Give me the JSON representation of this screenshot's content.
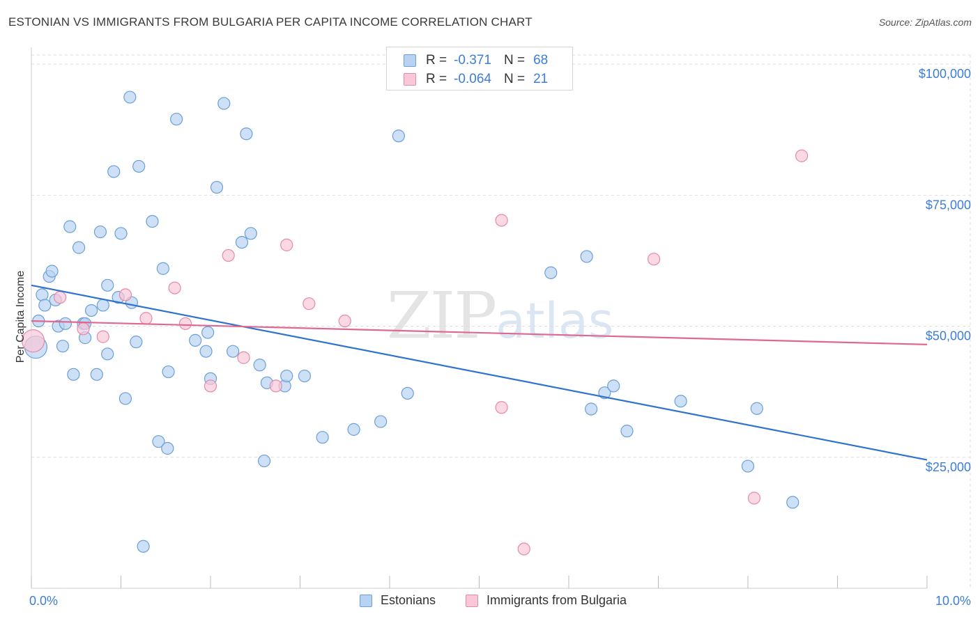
{
  "page": {
    "title": "ESTONIAN VS IMMIGRANTS FROM BULGARIA PER CAPITA INCOME CORRELATION CHART",
    "source": "Source: ZipAtlas.com",
    "watermark_zip": "ZIP",
    "watermark_atlas": "atlas"
  },
  "legend": {
    "rows": [
      {
        "r_label": "R =",
        "r_value": "-0.371",
        "n_label": "N =",
        "n_value": "68"
      },
      {
        "r_label": "R =",
        "r_value": "-0.064",
        "n_label": "N =",
        "n_value": "21"
      }
    ],
    "series_names": [
      "Estonians",
      "Immigrants from Bulgaria"
    ]
  },
  "colors": {
    "blue_fill": "#b8d3f2",
    "blue_stroke": "#6a9fd8",
    "blue_line": "#2f72d0",
    "pink_fill": "#f8c8d8",
    "pink_stroke": "#e48aa8",
    "pink_line": "#e06890",
    "accent_text": "#3b7dd8",
    "grid": "#dddddd"
  },
  "chart_data": {
    "type": "scatter",
    "title": "ESTONIAN VS IMMIGRANTS FROM BULGARIA PER CAPITA INCOME CORRELATION CHART",
    "xlabel": "",
    "ylabel": "Per Capita Income",
    "xlim": [
      0.0,
      10.0
    ],
    "ylim": [
      0,
      104000
    ],
    "x_tick_labels": [
      {
        "value": 0.0,
        "label": "0.0%"
      },
      {
        "value": 10.0,
        "label": "10.0%"
      }
    ],
    "y_ticks": [
      {
        "value": 25000,
        "label": "$25,000"
      },
      {
        "value": 50000,
        "label": "$50,000"
      },
      {
        "value": 75000,
        "label": "$75,000"
      },
      {
        "value": 100000,
        "label": "$100,000"
      }
    ],
    "series": [
      {
        "name": "Estonians",
        "color": "blue",
        "points": [
          [
            0.05,
            46000
          ],
          [
            0.08,
            51000
          ],
          [
            0.12,
            56000
          ],
          [
            0.15,
            54000
          ],
          [
            0.2,
            59500
          ],
          [
            0.23,
            60500
          ],
          [
            0.27,
            55000
          ],
          [
            0.3,
            50000
          ],
          [
            0.35,
            46200
          ],
          [
            0.38,
            50500
          ],
          [
            0.43,
            69000
          ],
          [
            0.47,
            40800
          ],
          [
            0.53,
            65000
          ],
          [
            0.58,
            50500
          ],
          [
            0.6,
            50500
          ],
          [
            0.6,
            47800
          ],
          [
            0.67,
            53000
          ],
          [
            0.73,
            40800
          ],
          [
            0.77,
            68000
          ],
          [
            0.8,
            54000
          ],
          [
            0.85,
            57800
          ],
          [
            0.85,
            44700
          ],
          [
            0.92,
            79500
          ],
          [
            0.97,
            55500
          ],
          [
            1.0,
            67700
          ],
          [
            1.05,
            36200
          ],
          [
            1.1,
            93700
          ],
          [
            1.12,
            54500
          ],
          [
            1.17,
            47000
          ],
          [
            1.2,
            80500
          ],
          [
            1.35,
            70000
          ],
          [
            1.42,
            28000
          ],
          [
            1.47,
            61000
          ],
          [
            1.52,
            26700
          ],
          [
            1.53,
            41300
          ],
          [
            1.62,
            89500
          ],
          [
            1.83,
            47300
          ],
          [
            1.95,
            45200
          ],
          [
            1.97,
            48800
          ],
          [
            2.0,
            40000
          ],
          [
            2.07,
            76500
          ],
          [
            2.15,
            92500
          ],
          [
            2.25,
            45200
          ],
          [
            2.35,
            66000
          ],
          [
            2.4,
            86700
          ],
          [
            2.45,
            67700
          ],
          [
            2.55,
            42600
          ],
          [
            2.6,
            24300
          ],
          [
            2.63,
            39200
          ],
          [
            2.83,
            38600
          ],
          [
            2.85,
            40500
          ],
          [
            3.05,
            40500
          ],
          [
            3.25,
            28800
          ],
          [
            3.6,
            30300
          ],
          [
            3.9,
            31800
          ],
          [
            4.1,
            86300
          ],
          [
            4.2,
            37200
          ],
          [
            5.8,
            60200
          ],
          [
            6.2,
            63300
          ],
          [
            6.25,
            34200
          ],
          [
            6.4,
            37300
          ],
          [
            6.5,
            38600
          ],
          [
            6.65,
            30000
          ],
          [
            7.25,
            35700
          ],
          [
            8.0,
            23300
          ],
          [
            8.1,
            34300
          ],
          [
            8.5,
            16400
          ],
          [
            1.25,
            8000
          ]
        ],
        "trend": {
          "x": [
            0.0,
            10.0
          ],
          "y": [
            57800,
            24500
          ]
        }
      },
      {
        "name": "Immigrants from Bulgaria",
        "color": "pink",
        "points": [
          [
            0.02,
            47200
          ],
          [
            0.32,
            55500
          ],
          [
            0.58,
            49500
          ],
          [
            0.8,
            48000
          ],
          [
            1.05,
            56000
          ],
          [
            1.28,
            51500
          ],
          [
            1.6,
            57300
          ],
          [
            1.72,
            50500
          ],
          [
            2.0,
            38600
          ],
          [
            2.2,
            63500
          ],
          [
            2.37,
            44000
          ],
          [
            2.73,
            38600
          ],
          [
            2.85,
            65500
          ],
          [
            3.1,
            54300
          ],
          [
            3.5,
            51000
          ],
          [
            5.25,
            70200
          ],
          [
            5.25,
            34500
          ],
          [
            5.5,
            7500
          ],
          [
            6.95,
            62800
          ],
          [
            8.07,
            17200
          ],
          [
            8.6,
            82500
          ]
        ],
        "trend": {
          "x": [
            0.0,
            10.0
          ],
          "y": [
            51000,
            46500
          ]
        }
      }
    ]
  }
}
